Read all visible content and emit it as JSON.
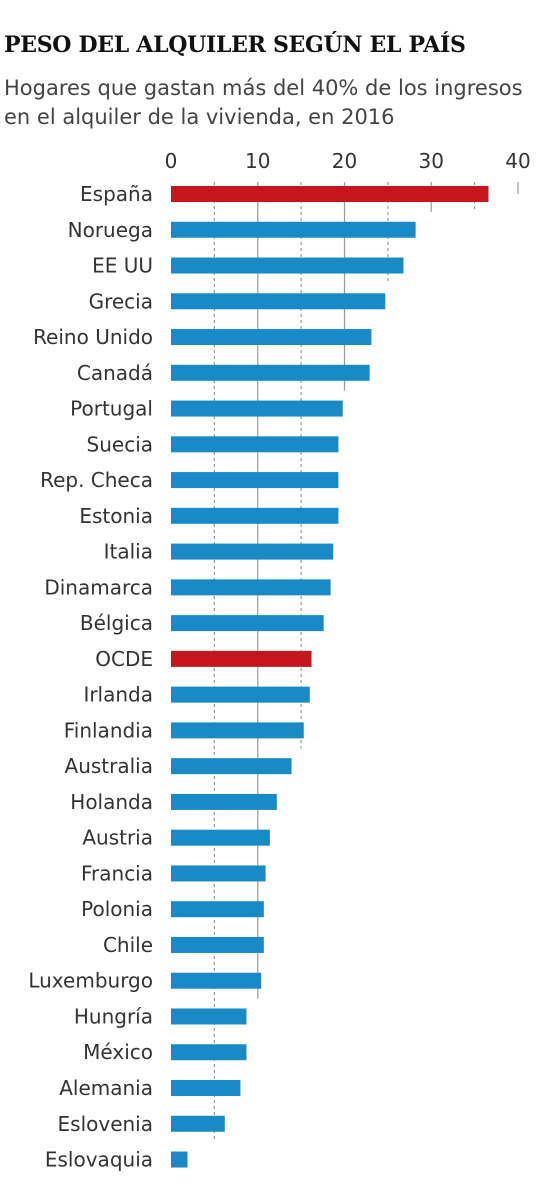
{
  "colors": {
    "bar": "#1a8ac6",
    "highlight": "#c4161c",
    "grid_major": "#9a9a9a",
    "grid_minor": "#9a9a9a",
    "text": "#333333"
  },
  "chart_data": {
    "type": "bar",
    "orientation": "horizontal",
    "title": "PESO DEL ALQUILER SEGÚN EL PAÍS",
    "subtitle": "Hogares que gastan más del 40% de los ingresos en el alquiler de la vivienda, en 2016",
    "xlabel": "",
    "ylabel": "",
    "xlim": [
      0,
      40
    ],
    "ticks": [
      0,
      10,
      20,
      30,
      40
    ],
    "minor_ticks": [
      5,
      15,
      25,
      35
    ],
    "grid": true,
    "axis_position": "top",
    "categories": [
      "España",
      "Noruega",
      "EE UU",
      "Grecia",
      "Reino Unido",
      "Canadá",
      "Portugal",
      "Suecia",
      "Rep. Checa",
      "Estonia",
      "Italia",
      "Dinamarca",
      "Bélgica",
      "OCDE",
      "Irlanda",
      "Finlandia",
      "Australia",
      "Holanda",
      "Austria",
      "Francia",
      "Polonia",
      "Chile",
      "Luxemburgo",
      "Hungría",
      "México",
      "Alemania",
      "Eslovenia",
      "Eslovaquia"
    ],
    "values": [
      36.6,
      28.2,
      26.8,
      24.7,
      23.1,
      22.9,
      19.8,
      19.3,
      19.3,
      19.3,
      18.7,
      18.4,
      17.6,
      16.2,
      16.0,
      15.3,
      13.9,
      12.2,
      11.4,
      10.9,
      10.7,
      10.7,
      10.4,
      8.7,
      8.7,
      8.0,
      6.2,
      1.9
    ],
    "highlighted": [
      "España",
      "OCDE"
    ]
  }
}
